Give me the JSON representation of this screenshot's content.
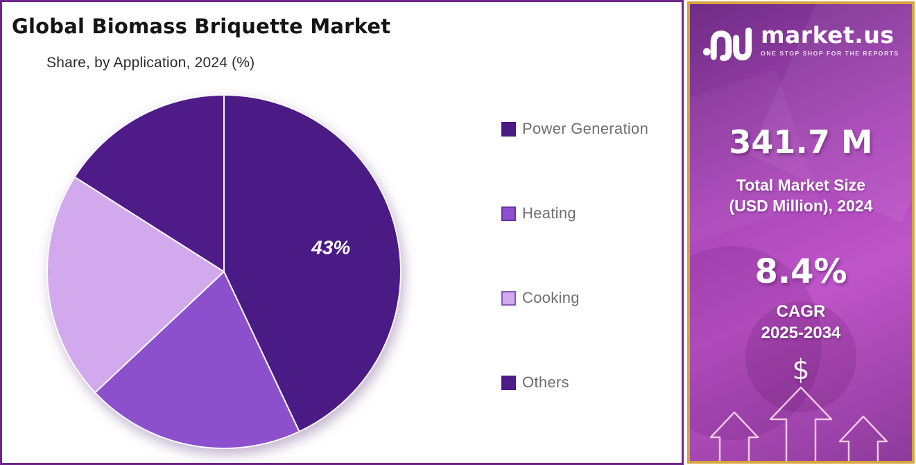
{
  "header": {
    "title": "Global Biomass Briquette Market",
    "subtitle": "Share, by Application, 2024 (%)"
  },
  "chart_data": {
    "type": "pie",
    "title": "Global Biomass Briquette Market",
    "subtitle": "Share, by Application, 2024 (%)",
    "categories": [
      "Power Generation",
      "Heating",
      "Cooking",
      "Others"
    ],
    "values": [
      43,
      20,
      21,
      16
    ],
    "slice_labels": [
      "43%",
      "",
      "",
      ""
    ],
    "colors": [
      "#4a1a85",
      "#8c50cd",
      "#d2a9ed",
      "#4f1b89"
    ],
    "start_angle_deg": 0,
    "direction": "clockwise",
    "legend_position": "right"
  },
  "panel": {
    "border_color": "#6e2589",
    "background": "#ffffff"
  },
  "sidebar": {
    "brand_name": "market.us",
    "brand_tagline": "ONE STOP SHOP FOR THE REPORTS",
    "market_size_value": "341.7 M",
    "market_size_label": [
      "Total Market Size",
      "(USD Million), 2024"
    ],
    "cagr_value": "8.4%",
    "cagr_label": [
      "CAGR",
      "2025-2034"
    ],
    "dollar_symbol": "$",
    "border_color": "#d7a53c",
    "gradient_colors": [
      "#6f2d86",
      "#a946b8",
      "#bf55c9",
      "#8c3a9b"
    ]
  }
}
